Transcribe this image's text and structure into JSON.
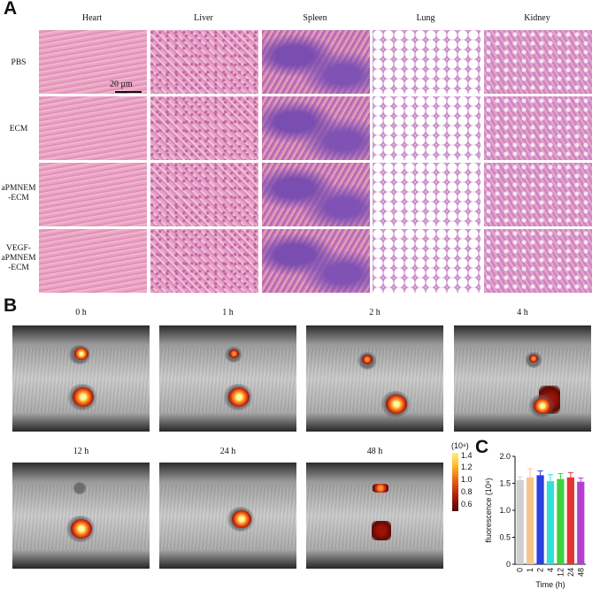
{
  "panel_a": {
    "letter": "A",
    "organs": [
      "Heart",
      "Liver",
      "Spleen",
      "Lung",
      "Kidney"
    ],
    "groups": [
      {
        "lines": [
          "PBS"
        ]
      },
      {
        "lines": [
          "ECM"
        ]
      },
      {
        "lines": [
          "aPMNEM",
          "-ECM"
        ]
      },
      {
        "lines": [
          "VEGF-",
          "aPMNEM",
          "-ECM"
        ]
      }
    ],
    "scale_bar": "20 μm"
  },
  "panel_b": {
    "letter": "B",
    "timepoints": [
      "0 h",
      "1 h",
      "2 h",
      "4 h",
      "12 h",
      "24 h",
      "48 h"
    ],
    "colorbar": {
      "unit": "(10⁸)",
      "ticks": [
        "1.4",
        "1.2",
        "1.0",
        "0.8",
        "0.6"
      ],
      "colors": [
        "#fff27a",
        "#ffb020",
        "#e35a12",
        "#a81c0c",
        "#4a0805"
      ]
    }
  },
  "panel_c": {
    "letter": "C"
  },
  "chart_data": {
    "type": "bar",
    "title": "",
    "categories": [
      "0",
      "1",
      "2",
      "4",
      "12",
      "24",
      "48"
    ],
    "values": [
      1.56,
      1.61,
      1.65,
      1.54,
      1.58,
      1.61,
      1.53
    ],
    "errors": [
      0.06,
      0.16,
      0.08,
      0.12,
      0.1,
      0.09,
      0.07
    ],
    "colors": [
      "#cfcfcf",
      "#f7c48e",
      "#2b3fe0",
      "#33e0d8",
      "#3fd13f",
      "#e83232",
      "#b53fd0"
    ],
    "xlabel": "Time (h)",
    "ylabel": "fluorescence (10⁸)",
    "ylim": [
      0,
      2.0
    ],
    "yticks": [
      "0",
      "0.5",
      "1.0",
      "1.5",
      "2.0"
    ],
    "grid": false,
    "legend": "none"
  }
}
